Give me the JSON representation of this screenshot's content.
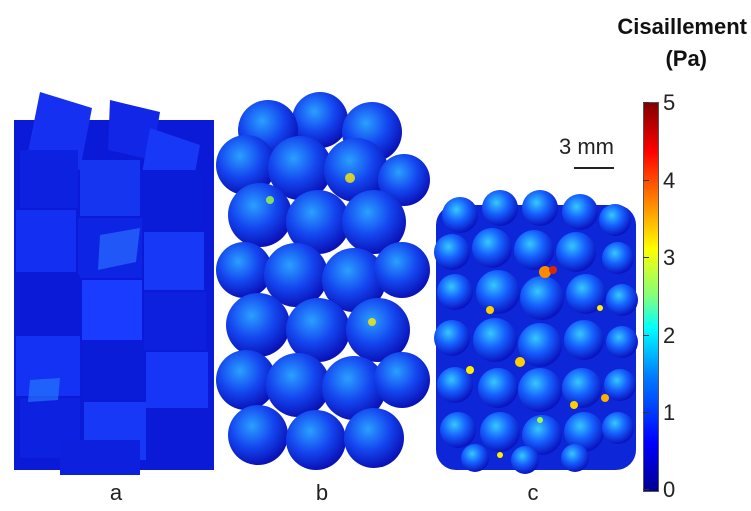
{
  "legend": {
    "title_line1": "Cisaillement",
    "title_line2": "(Pa)",
    "ticks": [
      "5",
      "4",
      "3",
      "2",
      "1",
      "0"
    ],
    "range": [
      0,
      5
    ],
    "colormap": "jet"
  },
  "scale_bar": {
    "label": "3 mm"
  },
  "panels": [
    {
      "label": "a",
      "shape": "cubes"
    },
    {
      "label": "b",
      "shape": "large-spheres"
    },
    {
      "label": "c",
      "shape": "small-spheres"
    }
  ],
  "colors": {
    "dark_blue": "#0a1bd8",
    "mid_blue": "#1e50ff",
    "cyan": "#19c8ff",
    "yellow": "#ffe600",
    "red": "#d42a00"
  }
}
